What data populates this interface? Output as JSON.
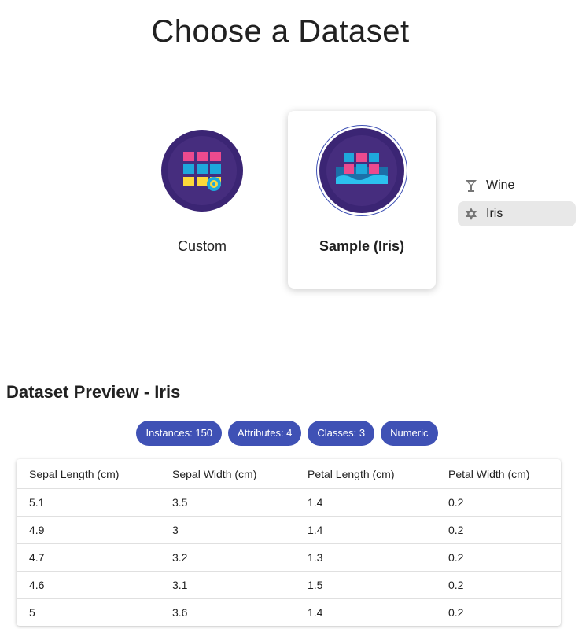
{
  "title": "Choose a Dataset",
  "options": [
    {
      "label": "Custom",
      "icon": "custom-dataset-icon"
    },
    {
      "label": "Sample (Iris)",
      "icon": "sample-dataset-icon",
      "selected": true
    }
  ],
  "sample_list": [
    {
      "label": "Wine",
      "icon": "wine-glass-icon"
    },
    {
      "label": "Iris",
      "icon": "flower-icon",
      "selected": true
    }
  ],
  "preview": {
    "heading": "Dataset Preview - Iris",
    "chips": [
      "Instances: 150",
      "Attributes: 4",
      "Classes: 3",
      "Numeric"
    ],
    "columns": [
      "Sepal Length (cm)",
      "Sepal Width (cm)",
      "Petal Length (cm)",
      "Petal Width (cm)"
    ],
    "rows": [
      [
        "5.1",
        "3.5",
        "1.4",
        "0.2"
      ],
      [
        "4.9",
        "3",
        "1.4",
        "0.2"
      ],
      [
        "4.7",
        "3.2",
        "1.3",
        "0.2"
      ],
      [
        "4.6",
        "3.1",
        "1.5",
        "0.2"
      ],
      [
        "5",
        "3.6",
        "1.4",
        "0.2"
      ]
    ]
  },
  "colors": {
    "accent": "#3f51b5",
    "circle": "#3b2574"
  }
}
